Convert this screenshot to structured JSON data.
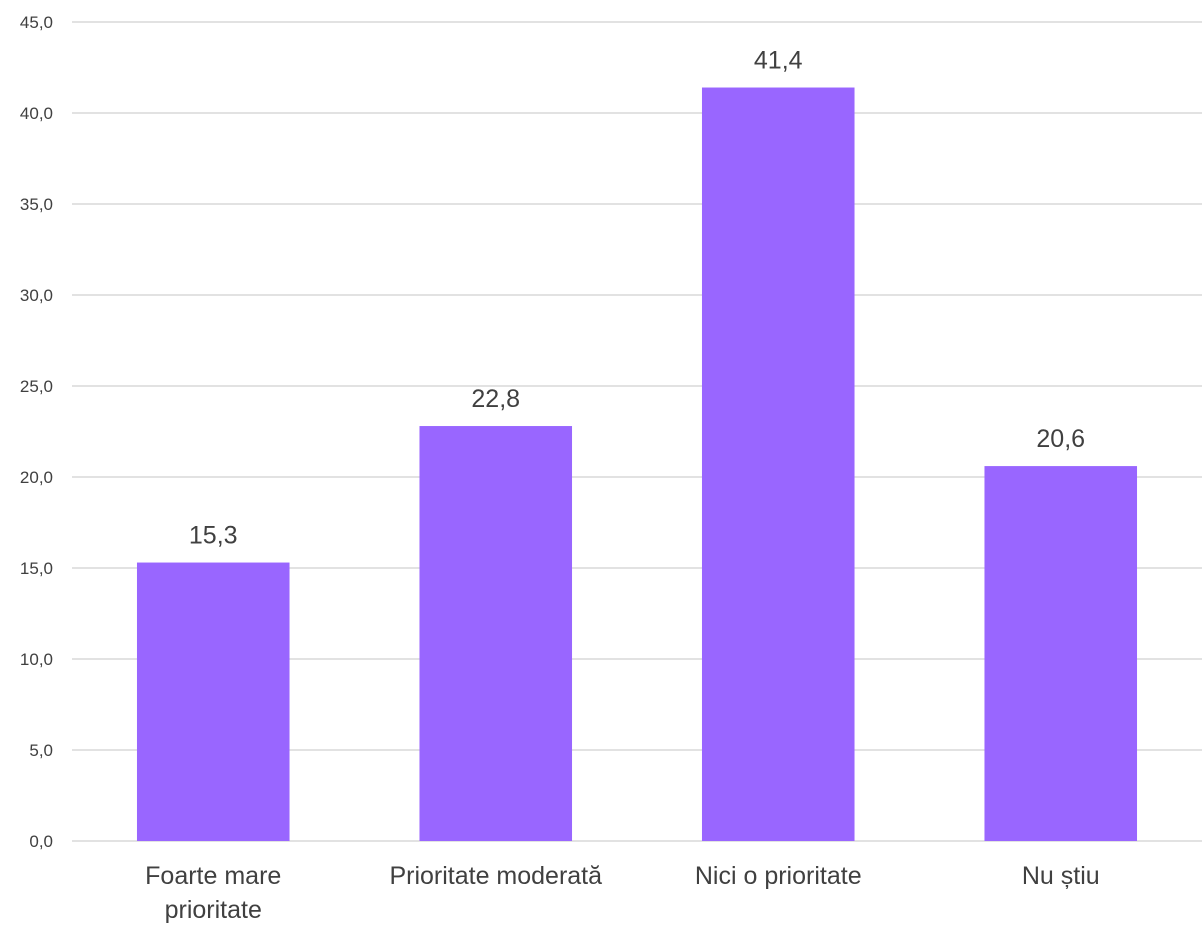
{
  "chart_data": {
    "type": "bar",
    "categories": [
      [
        "Foarte mare",
        "prioritate"
      ],
      [
        "Prioritate moderată"
      ],
      [
        "Nici o prioritate"
      ],
      [
        "Nu știu"
      ]
    ],
    "values": [
      15.3,
      22.8,
      41.4,
      20.6
    ],
    "value_labels": [
      "15,3",
      "22,8",
      "41,4",
      "20,6"
    ],
    "ylim": [
      0,
      45
    ],
    "yticks": [
      0,
      5,
      10,
      15,
      20,
      25,
      30,
      35,
      40,
      45
    ],
    "ytick_labels": [
      "0,0",
      "5,0",
      "10,0",
      "15,0",
      "20,0",
      "25,0",
      "30,0",
      "35,0",
      "40,0",
      "45,0"
    ],
    "grid": true,
    "legend": "none",
    "bar_color": "#9966ff",
    "grid_color": "#d9d9d9",
    "text_color": "#404040"
  }
}
